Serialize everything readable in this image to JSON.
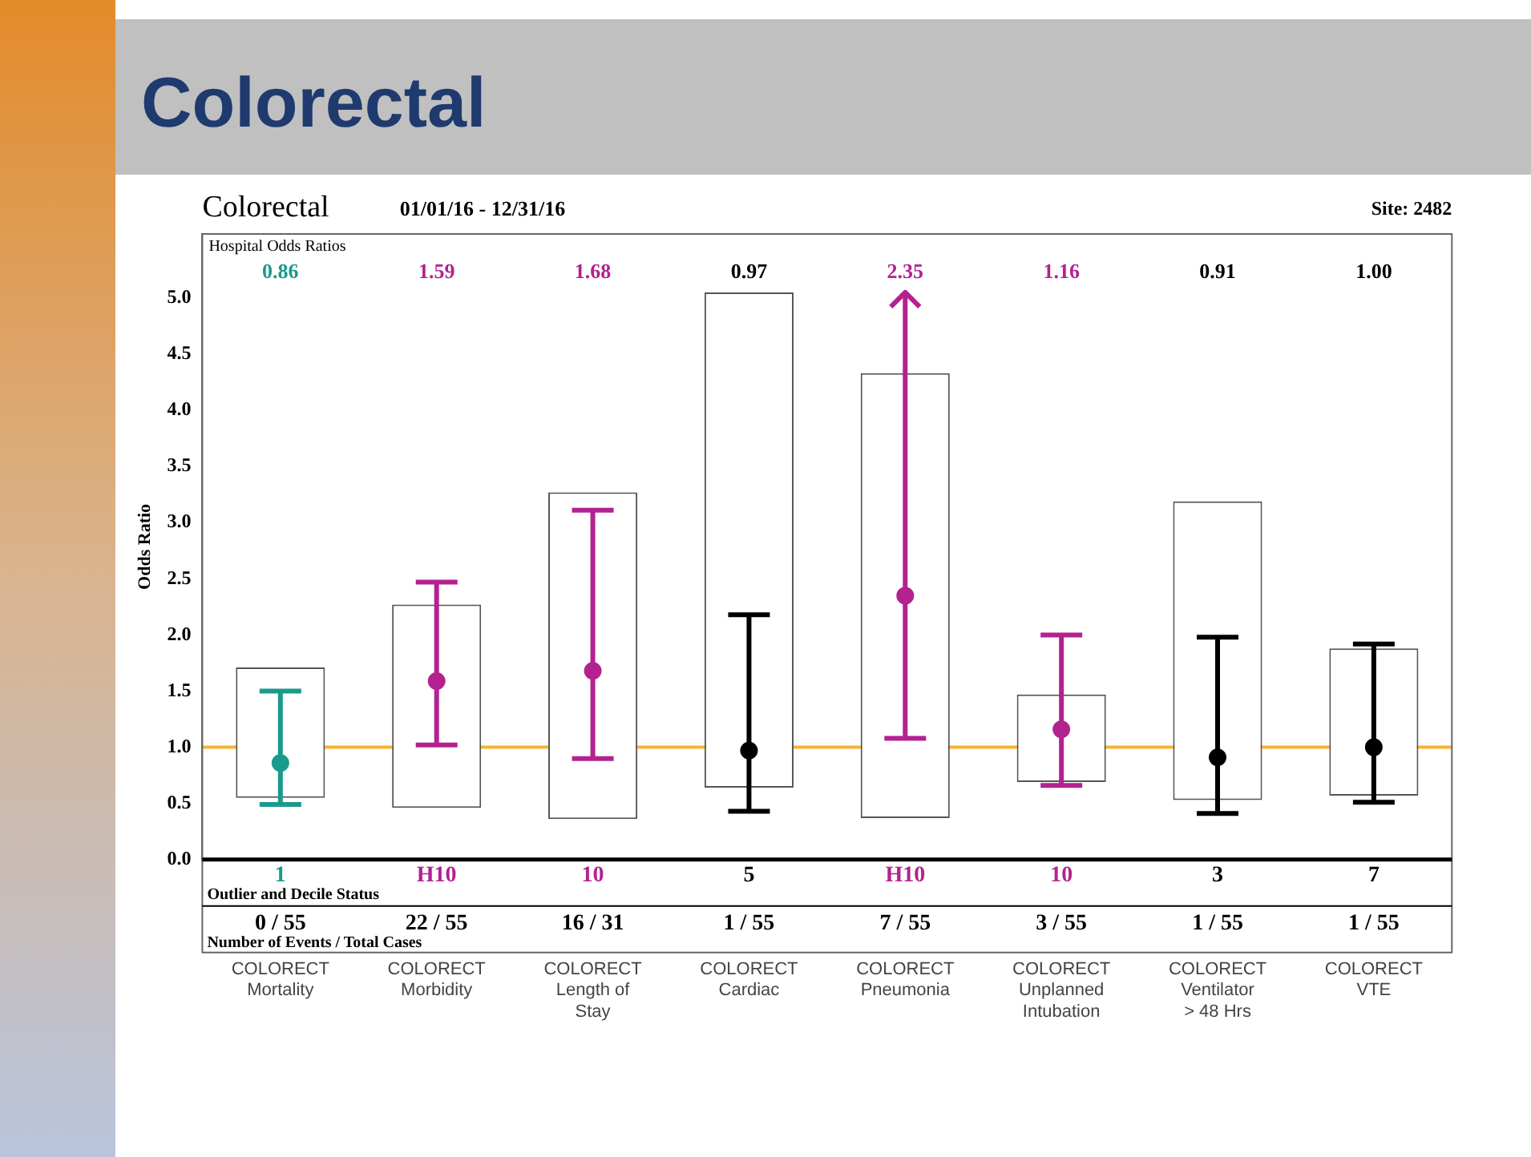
{
  "chart_data": {
    "type": "scatter",
    "title": "Colorectal",
    "subtitle": "01/01/16 - 12/31/16",
    "ylabel": "Odds Ratio",
    "categories": [
      "COLORECT\nMortality",
      "COLORECT\nMorbidity",
      "COLORECT\nLength of\nStay",
      "COLORECT\nCardiac",
      "COLORECT\nPneumonia",
      "COLORECT\nUnplanned\nIntubation",
      "COLORECT\nVentilator\n> 48 Hrs",
      "COLORECT\nVTE"
    ],
    "series": [
      {
        "type": "bar",
        "color": "#ffffff",
        "base": [
          0.55,
          0.46,
          0.36,
          0.64,
          0.37,
          0.69,
          0.53,
          0.57
        ],
        "values": [
          1.16,
          1.81,
          2.91,
          4.41,
          3.96,
          0.78,
          2.66,
          1.31
        ]
      },
      {
        "colors": [
          "#1a9a8c",
          "#b3228f",
          "#b3228f",
          "#000000",
          "#b3228f",
          "#b3228f",
          "#000000",
          "#000000"
        ],
        "values": [
          0.86,
          1.59,
          1.68,
          0.97,
          2.35,
          1.16,
          0.91,
          1.0
        ],
        "errors": [
          [
            0.49,
            1.5
          ],
          [
            1.02,
            2.47
          ],
          [
            0.9,
            3.11
          ],
          [
            0.43,
            2.18
          ],
          [
            1.08,
            5.05
          ],
          [
            0.66,
            2.0
          ],
          [
            0.41,
            1.98
          ],
          [
            0.51,
            1.92
          ]
        ]
      }
    ],
    "ylim": [
      0,
      5.57
    ],
    "yticks": [
      {
        "value": 0,
        "label": "0.0"
      },
      {
        "value": 0.5,
        "label": "0.5"
      },
      {
        "value": 1,
        "label": "1.0"
      },
      {
        "value": 1.5,
        "label": "1.5"
      },
      {
        "value": 2,
        "label": "2.0"
      },
      {
        "value": 2.5,
        "label": "2.5"
      },
      {
        "value": 3,
        "label": "3.0"
      },
      {
        "value": 3.5,
        "label": "3.5"
      },
      {
        "value": 4,
        "label": "4.0"
      },
      {
        "value": 4.5,
        "label": "4.5"
      },
      {
        "value": 5,
        "label": "5.0"
      }
    ],
    "ref_lines": [
      {
        "axis": "y",
        "value": 1,
        "color": "#f5b335"
      }
    ],
    "grid": false,
    "legend": false,
    "marker": "circle",
    "annotations": [
      "Hospital Odds Ratios",
      "Outlier and Decile Status",
      "Number of Events / Total Cases",
      "Colorectal",
      "Site: 2482",
      "0.86",
      "1.59",
      "1.68",
      "0.97",
      "2.35",
      "1.16",
      "0.91",
      "1.00",
      "1",
      "H10",
      "10",
      "5",
      "H10",
      "10",
      "3",
      "7",
      "0 / 55",
      "22 / 55",
      "16 / 31",
      "1 / 55",
      "7 / 55",
      "3 / 55",
      "1 / 55",
      "1 / 55"
    ]
  }
}
